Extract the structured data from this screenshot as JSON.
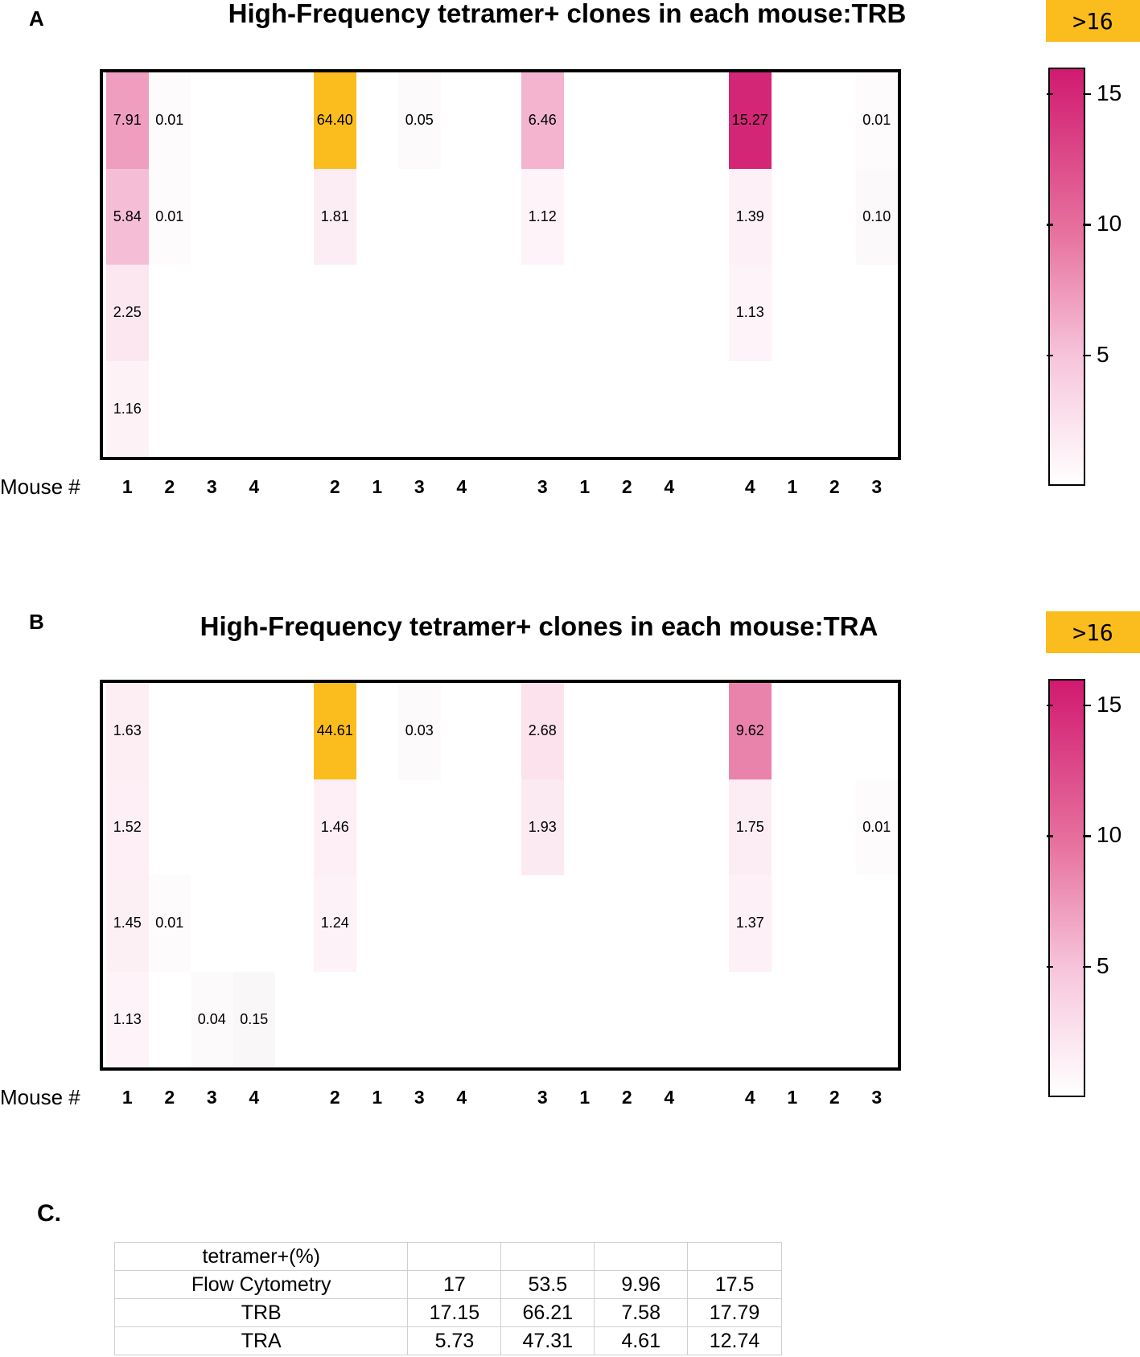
{
  "chart_data": [
    {
      "type": "heatmap",
      "panel": "A",
      "title": "High-Frequency tetramer+ clones in each mouse:TRB",
      "xlabel": "Mouse #",
      "x_tick_labels": [
        "1",
        "2",
        "3",
        "4",
        "2",
        "1",
        "3",
        "4",
        "3",
        "1",
        "2",
        "4",
        "4",
        "1",
        "2",
        "3"
      ],
      "groups": [
        {
          "cells": [
            [
              "7.91",
              "0.01",
              null,
              null
            ],
            [
              "5.84",
              "0.01",
              null,
              null
            ],
            [
              "2.25",
              null,
              null,
              null
            ],
            [
              "1.16",
              null,
              null,
              null
            ]
          ]
        },
        {
          "cells": [
            [
              "64.40",
              null,
              "0.05",
              null
            ],
            [
              "1.81",
              null,
              null,
              null
            ],
            [
              null,
              null,
              null,
              null
            ],
            [
              null,
              null,
              null,
              null
            ]
          ]
        },
        {
          "cells": [
            [
              "6.46",
              null,
              null,
              null
            ],
            [
              "1.12",
              null,
              null,
              null
            ],
            [
              null,
              null,
              null,
              null
            ],
            [
              null,
              null,
              null,
              null
            ]
          ]
        },
        {
          "cells": [
            [
              "15.27",
              null,
              null,
              "0.01"
            ],
            [
              "1.39",
              null,
              null,
              "0.10"
            ],
            [
              "1.13",
              null,
              null,
              null
            ],
            [
              null,
              null,
              null,
              null
            ]
          ]
        }
      ],
      "colorbar": {
        "ticks": [
          5,
          10,
          15
        ],
        "range": [
          0,
          16
        ],
        "overflow_label": ">16",
        "overflow_color": "#fbbd1d",
        "colors": [
          "#ffffff",
          "#f7c6dc",
          "#e7739f",
          "#d11a70"
        ]
      }
    },
    {
      "type": "heatmap",
      "panel": "B",
      "title": "High-Frequency tetramer+ clones in each mouse:TRA",
      "xlabel": "Mouse #",
      "x_tick_labels": [
        "1",
        "2",
        "3",
        "4",
        "2",
        "1",
        "3",
        "4",
        "3",
        "1",
        "2",
        "4",
        "4",
        "1",
        "2",
        "3"
      ],
      "groups": [
        {
          "cells": [
            [
              "1.63",
              null,
              null,
              null
            ],
            [
              "1.52",
              null,
              null,
              null
            ],
            [
              "1.45",
              "0.01",
              null,
              null
            ],
            [
              "1.13",
              null,
              "0.04",
              "0.15"
            ]
          ]
        },
        {
          "cells": [
            [
              "44.61",
              null,
              "0.03",
              null
            ],
            [
              "1.46",
              null,
              null,
              null
            ],
            [
              "1.24",
              null,
              null,
              null
            ],
            [
              null,
              null,
              null,
              null
            ]
          ]
        },
        {
          "cells": [
            [
              "2.68",
              null,
              null,
              null
            ],
            [
              "1.93",
              null,
              null,
              null
            ],
            [
              null,
              null,
              null,
              null
            ],
            [
              null,
              null,
              null,
              null
            ]
          ]
        },
        {
          "cells": [
            [
              "9.62",
              null,
              null,
              null
            ],
            [
              "1.75",
              null,
              null,
              "0.01"
            ],
            [
              "1.37",
              null,
              null,
              null
            ],
            [
              null,
              null,
              null,
              null
            ]
          ]
        }
      ],
      "colorbar": {
        "ticks": [
          5,
          10,
          15
        ],
        "range": [
          0,
          16
        ],
        "overflow_label": ">16",
        "overflow_color": "#fbbd1d",
        "colors": [
          "#ffffff",
          "#f7c6dc",
          "#e7739f",
          "#d11a70"
        ]
      }
    },
    {
      "type": "table",
      "panel": "C.",
      "rows": [
        [
          "tetramer+(%)",
          "",
          "",
          "",
          ""
        ],
        [
          "Flow Cytometry",
          "17",
          "53.5",
          "9.96",
          "17.5"
        ],
        [
          "TRB",
          "17.15",
          "66.21",
          "7.58",
          "17.79"
        ],
        [
          "TRA",
          "5.73",
          "47.31",
          "4.61",
          "12.74"
        ]
      ]
    }
  ]
}
